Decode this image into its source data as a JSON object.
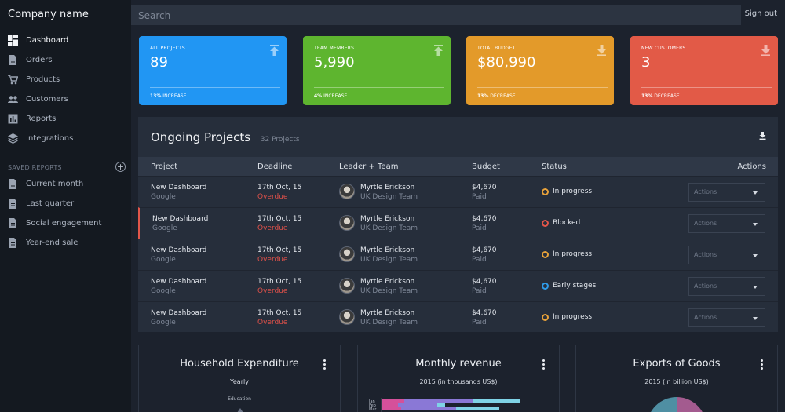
{
  "app": {
    "company_name": "Company name",
    "sign_out": "Sign out"
  },
  "search": {
    "placeholder": "Search"
  },
  "sidebar": {
    "items": [
      {
        "label": "Dashboard",
        "icon": "dashboard-icon",
        "active": true
      },
      {
        "label": "Orders",
        "icon": "document-icon"
      },
      {
        "label": "Products",
        "icon": "cart-icon"
      },
      {
        "label": "Customers",
        "icon": "users-icon"
      },
      {
        "label": "Reports",
        "icon": "chart-icon"
      },
      {
        "label": "Integrations",
        "icon": "layers-icon"
      }
    ],
    "saved_reports_heading": "SAVED REPORTS",
    "saved_reports": [
      {
        "label": "Current month"
      },
      {
        "label": "Last quarter"
      },
      {
        "label": "Social engagement"
      },
      {
        "label": "Year-end sale"
      }
    ]
  },
  "stats": [
    {
      "label": "ALL PROJECTS",
      "value": "89",
      "change_pct": "13%",
      "change_word": "INCREASE",
      "color": "#2196f3",
      "icon": "upload-icon"
    },
    {
      "label": "TEAM MEMBERS",
      "value": "5,990",
      "change_pct": "4%",
      "change_word": "INCREASE",
      "color": "#5eb52f",
      "icon": "upload-icon"
    },
    {
      "label": "TOTAL BUDGET",
      "value": "$80,990",
      "change_pct": "13%",
      "change_word": "DECREASE",
      "color": "#e39a2a",
      "icon": "download-icon"
    },
    {
      "label": "NEW CUSTOMERS",
      "value": "3",
      "change_pct": "13%",
      "change_word": "DECREASE",
      "color": "#e25a47",
      "icon": "download-icon"
    }
  ],
  "projects": {
    "title": "Ongoing Projects",
    "count": "| 32 Projects",
    "columns": [
      "Project",
      "Deadline",
      "Leader + Team",
      "Budget",
      "Status",
      "Actions"
    ],
    "rows": [
      {
        "project": "New Dashboard",
        "client": "Google",
        "deadline": "17th Oct, 15",
        "deadline_status": "Overdue",
        "leader": "Myrtle Erickson",
        "team": "UK Design Team",
        "budget": "$4,670",
        "budget_status": "Paid",
        "status": "In progress",
        "status_color": "#e8a23a",
        "actions": "Actions",
        "flagged": false
      },
      {
        "project": "New Dashboard",
        "client": "Google",
        "deadline": "17th Oct, 15",
        "deadline_status": "Overdue",
        "leader": "Myrtle Erickson",
        "team": "UK Design Team",
        "budget": "$4,670",
        "budget_status": "Paid",
        "status": "Blocked",
        "status_color": "#e2564a",
        "actions": "Actions",
        "flagged": true
      },
      {
        "project": "New Dashboard",
        "client": "Google",
        "deadline": "17th Oct, 15",
        "deadline_status": "Overdue",
        "leader": "Myrtle Erickson",
        "team": "UK Design Team",
        "budget": "$4,670",
        "budget_status": "Paid",
        "status": "In progress",
        "status_color": "#e8a23a",
        "actions": "Actions",
        "flagged": false
      },
      {
        "project": "New Dashboard",
        "client": "Google",
        "deadline": "17th Oct, 15",
        "deadline_status": "Overdue",
        "leader": "Myrtle Erickson",
        "team": "UK Design Team",
        "budget": "$4,670",
        "budget_status": "Paid",
        "status": "Early stages",
        "status_color": "#2f9be8",
        "actions": "Actions",
        "flagged": false
      },
      {
        "project": "New Dashboard",
        "client": "Google",
        "deadline": "17th Oct, 15",
        "deadline_status": "Overdue",
        "leader": "Myrtle Erickson",
        "team": "UK Design Team",
        "budget": "$4,670",
        "budget_status": "Paid",
        "status": "In progress",
        "status_color": "#e8a23a",
        "actions": "Actions",
        "flagged": false
      }
    ]
  },
  "widgets": [
    {
      "title": "Household Expenditure",
      "subtitle": "Yearly",
      "extra": "Education"
    },
    {
      "title": "Monthly revenue",
      "subtitle": "2015 (in thousands US$)",
      "extra": ""
    },
    {
      "title": "Exports of Goods",
      "subtitle": "2015 (in billion US$)",
      "extra": ""
    }
  ]
}
